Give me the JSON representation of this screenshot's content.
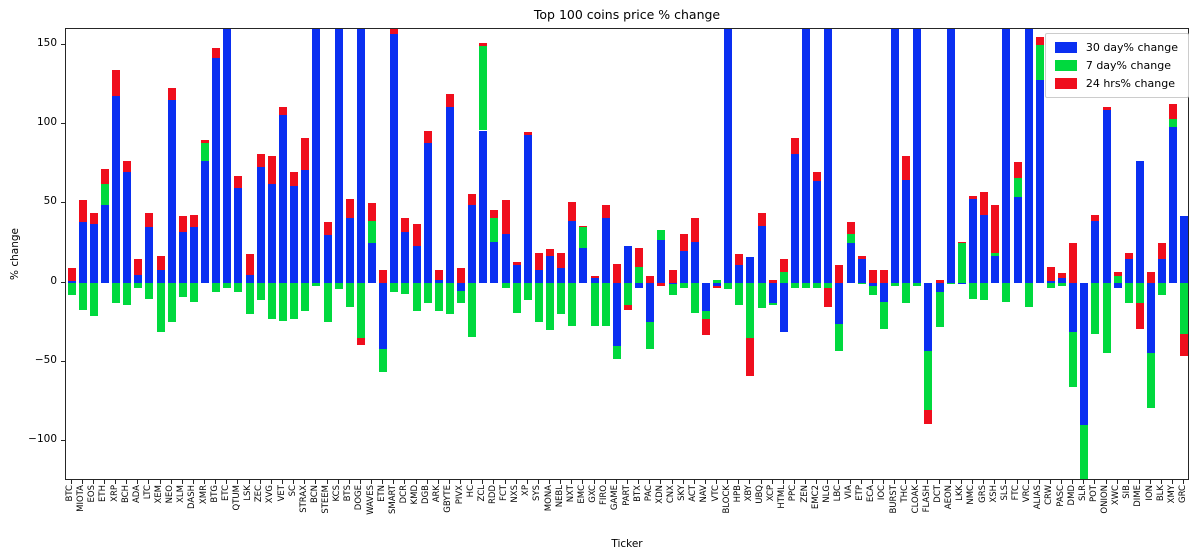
{
  "title": "Top 100 coins price % change",
  "chart_data": {
    "type": "bar",
    "stacked": true,
    "title": "Top 100 coins price % change",
    "xlabel": "Ticker",
    "ylabel": "% change",
    "ylim": [
      -125,
      160
    ],
    "yticks": [
      150,
      100,
      50,
      0,
      -50,
      -100
    ],
    "grid": false,
    "legend_position": "upper right",
    "colors": {
      "blue_30d": "#0a2ff1",
      "green_7d": "#00d93e",
      "red_24h": "#ef0e1d"
    },
    "categories": [
      "BTC",
      "MIOTA",
      "EOS",
      "ETH",
      "XRP",
      "BCH",
      "ADA",
      "LTC",
      "XEM",
      "NEO",
      "XLM",
      "DASH",
      "XMR",
      "BTG",
      "ETC",
      "QTUM",
      "LSK",
      "ZEC",
      "XVG",
      "VET",
      "SC",
      "STRAX",
      "BCN",
      "STEEM",
      "KCS",
      "BTS",
      "DOGE",
      "WAVES",
      "ETN",
      "SMART",
      "DCR",
      "KMD",
      "DGB",
      "ARK",
      "GBYTE",
      "PIVX",
      "HC",
      "ZCL",
      "RDD",
      "FCT",
      "NXS",
      "XP",
      "SYS",
      "MONA",
      "NEBL",
      "NXT",
      "EMC",
      "GXC",
      "FIRO",
      "GAME",
      "PART",
      "BTX",
      "PAC",
      "XDN",
      "CNX",
      "SKY",
      "ACT",
      "NAV",
      "VTC",
      "BLOCK",
      "HPB",
      "XBY",
      "UBQ",
      "XCP",
      "HTML",
      "PPC",
      "ZEN",
      "EMC2",
      "NLG",
      "LBC",
      "VIA",
      "ETP",
      "ECA",
      "IOC",
      "BURST",
      "THC",
      "CLOAK",
      "FLASH",
      "DCT",
      "AEON",
      "LKK",
      "NMC",
      "GRS",
      "XSH",
      "SLS",
      "FTC",
      "VRC",
      "ALIAS",
      "CRW",
      "PASC",
      "DMD",
      "SLR",
      "POT",
      "ONION",
      "XWC",
      "SIB",
      "DIME",
      "ION",
      "BLK",
      "XMY",
      "GRC"
    ],
    "series": [
      {
        "name": "30 day% change",
        "color": "#0a2ff1",
        "values": [
          1,
          38,
          37,
          49,
          118,
          70,
          5,
          35,
          8,
          115,
          32,
          35,
          77,
          142,
          170,
          60,
          5,
          73,
          62,
          106,
          61,
          71,
          170,
          30,
          170,
          41,
          170,
          25,
          -42,
          157,
          32,
          23,
          88,
          2,
          111,
          -5,
          49,
          96,
          26,
          31,
          11,
          93,
          8,
          17,
          9,
          39,
          22,
          3,
          41,
          -40,
          23,
          -3,
          -25,
          27,
          -1,
          20,
          26,
          -18,
          -2,
          170,
          11,
          16,
          36,
          -13,
          -31,
          81,
          170,
          64,
          170,
          -26,
          25,
          15,
          -2,
          -12,
          170,
          65,
          170,
          -43,
          -6,
          170,
          -1,
          53,
          43,
          17,
          170,
          54,
          170,
          128,
          1,
          3,
          -31,
          -90,
          39,
          109,
          -3,
          15,
          77,
          -44,
          15,
          98,
          42
        ]
      },
      {
        "name": "7 day% change",
        "color": "#00d93e",
        "values": [
          -8,
          -17,
          -21,
          13,
          -13,
          -14,
          -3,
          -10,
          -31,
          -25,
          -9,
          -12,
          11,
          -6,
          -3,
          -6,
          -20,
          -11,
          -23,
          -24,
          -23,
          -18,
          -2,
          -25,
          -4,
          -15,
          -35,
          14,
          -14,
          -6,
          -7,
          -18,
          -13,
          -18,
          -20,
          -8,
          -34,
          53,
          15,
          -3,
          -19,
          -11,
          -25,
          -30,
          -20,
          -27,
          13,
          -27,
          -27,
          -8,
          -14,
          10,
          -17,
          6,
          -7,
          -3,
          -19,
          -5,
          2,
          -4,
          -14,
          -35,
          -16,
          -1,
          7,
          -3,
          -3,
          -3,
          -3,
          -17,
          6,
          -1,
          -6,
          -17,
          -2,
          -13,
          -2,
          -37,
          -22,
          -1,
          25,
          -10,
          -11,
          2,
          -12,
          12,
          -15,
          22,
          -3,
          -2,
          -35,
          -42,
          -32,
          -44,
          4,
          -13,
          -13,
          -35,
          -8,
          5,
          -32
        ]
      },
      {
        "name": "24 hrs% change",
        "color": "#ef0e1d",
        "values": [
          8,
          14,
          7,
          10,
          16,
          7,
          10,
          9,
          9,
          8,
          10,
          8,
          2,
          6,
          2,
          7,
          13,
          8,
          18,
          5,
          9,
          20,
          3,
          8,
          3,
          12,
          -4,
          11,
          8,
          3,
          9,
          14,
          8,
          6,
          8,
          9,
          7,
          2,
          5,
          21,
          2,
          2,
          11,
          4,
          10,
          12,
          1,
          1,
          8,
          12,
          -3,
          12,
          4,
          -2,
          8,
          11,
          15,
          -10,
          -1,
          2,
          7,
          -24,
          8,
          2,
          8,
          10,
          2,
          6,
          -12,
          11,
          7,
          2,
          8,
          8,
          2,
          15,
          2,
          -9,
          2,
          1,
          1,
          2,
          14,
          30,
          2,
          10,
          2,
          5,
          9,
          3,
          25,
          0,
          4,
          2,
          3,
          4,
          -16,
          7,
          10,
          10,
          -14
        ]
      }
    ]
  }
}
